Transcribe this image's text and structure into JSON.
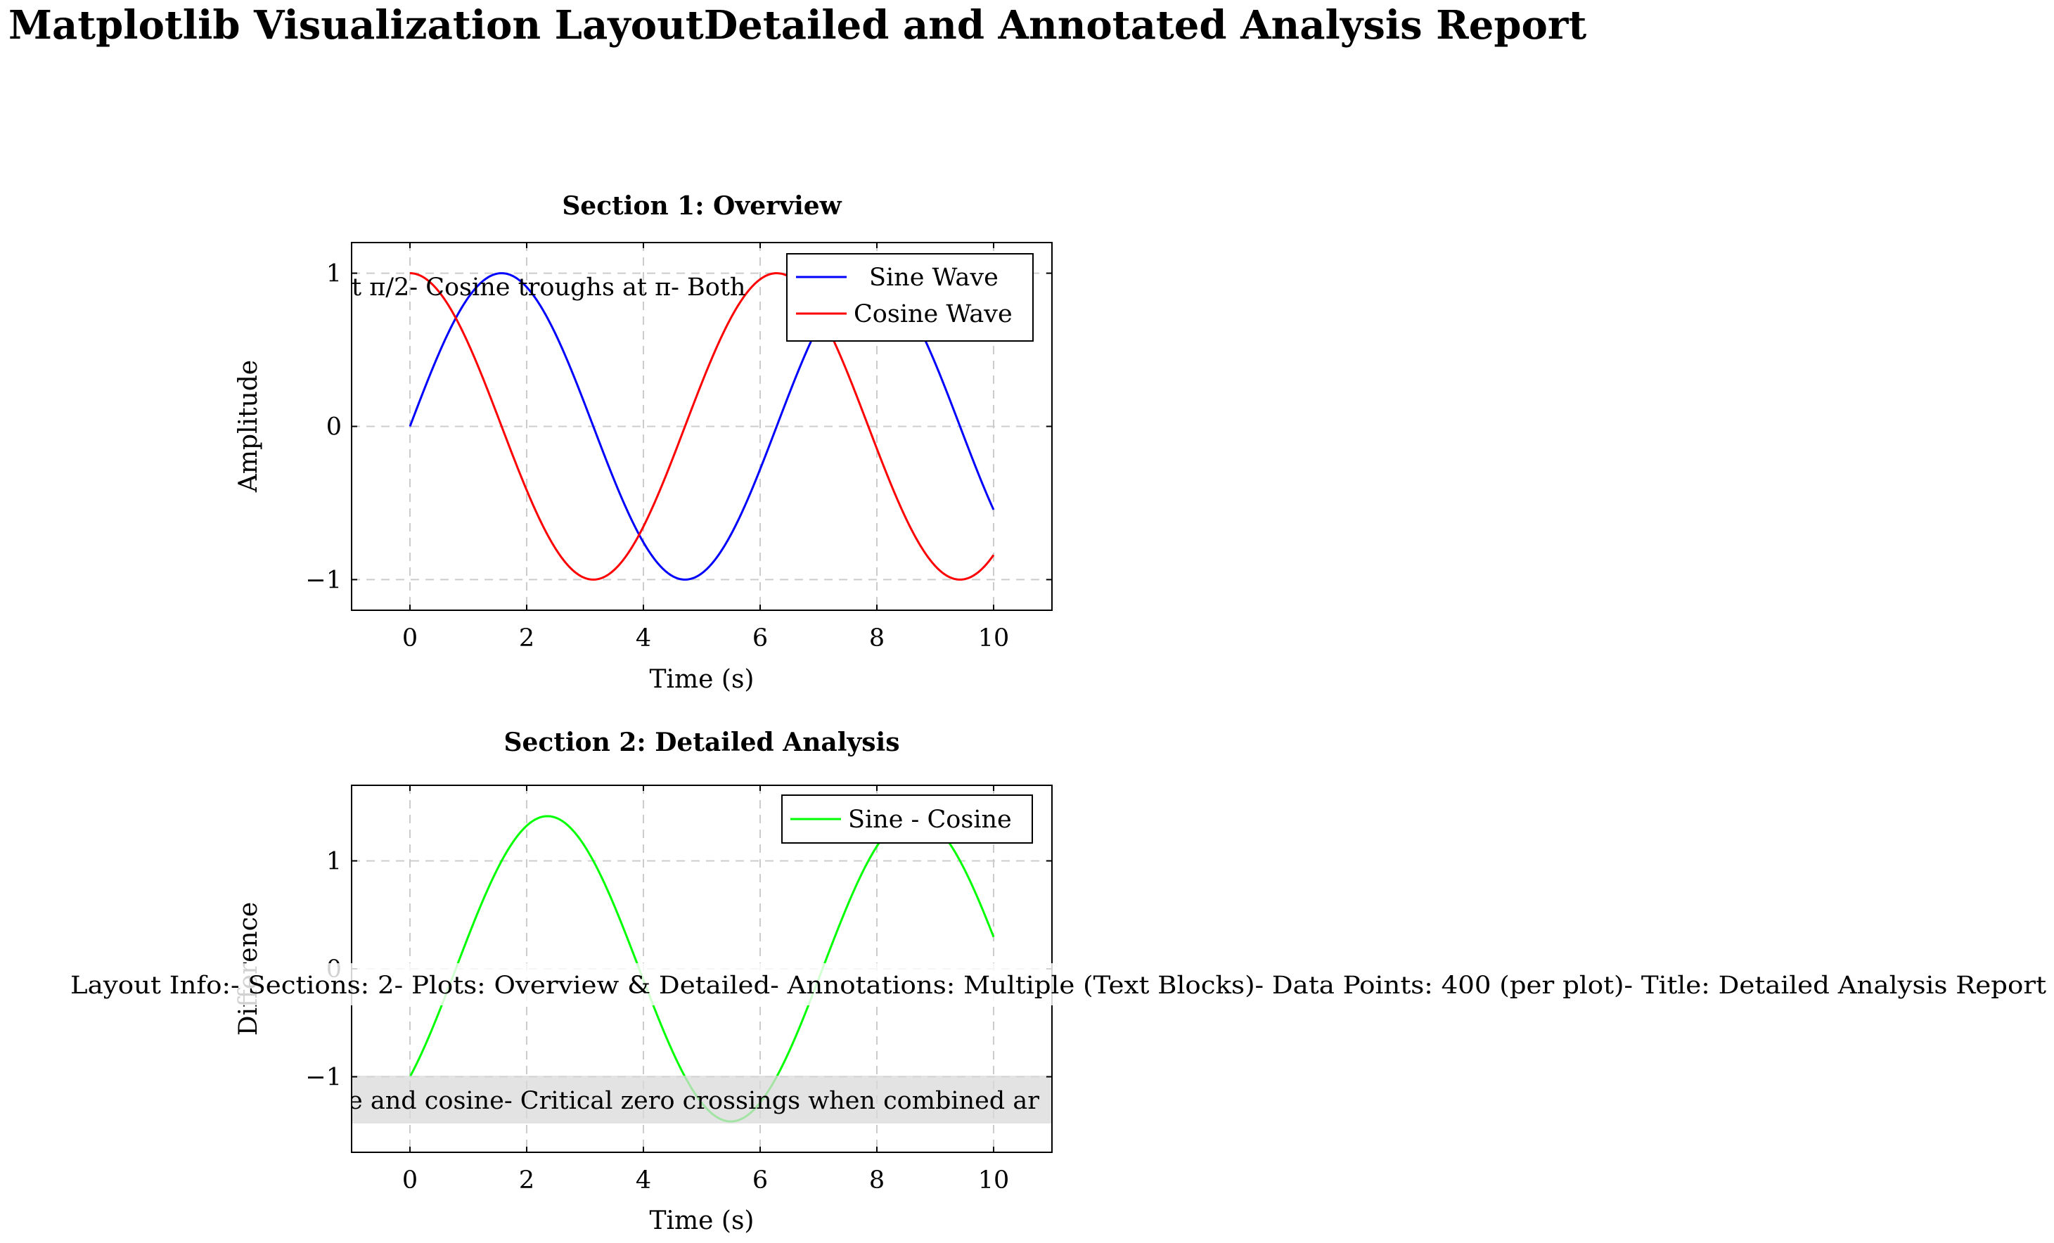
{
  "page": {
    "title": "Matplotlib Visualization LayoutDetailed and Annotated Analysis Report"
  },
  "chart_data": [
    {
      "type": "line",
      "title": "Section 1: Overview",
      "xlabel": "Time (s)",
      "ylabel": "Amplitude",
      "xlim": [
        -1,
        11
      ],
      "ylim": [
        -1.2,
        1.2
      ],
      "xticks": [
        0,
        2,
        4,
        6,
        8,
        10
      ],
      "xtick_labels": [
        "0",
        "2",
        "4",
        "6",
        "8",
        "10"
      ],
      "yticks": [
        -1,
        0,
        1
      ],
      "ytick_labels": [
        "−1",
        "0",
        "1"
      ],
      "grid": true,
      "legend_position": "top-right",
      "x_range": [
        0,
        10
      ],
      "num_points": 400,
      "series": [
        {
          "name": "Sine Wave",
          "function": "sin(x)",
          "color": "#0000ff"
        },
        {
          "name": "Cosine Wave",
          "function": "cos(x)",
          "color": "#ff0000"
        }
      ],
      "annotation": "t π/2- Cosine troughs at π- Both"
    },
    {
      "type": "line",
      "title": "Section 2: Detailed Analysis",
      "xlabel": "Time (s)",
      "ylabel": "Difference",
      "xlim": [
        -1,
        11
      ],
      "ylim": [
        -1.7,
        1.7
      ],
      "xticks": [
        0,
        2,
        4,
        6,
        8,
        10
      ],
      "xtick_labels": [
        "0",
        "2",
        "4",
        "6",
        "8",
        "10"
      ],
      "yticks": [
        -1,
        0,
        1
      ],
      "ytick_labels": [
        "−1",
        "0",
        "1"
      ],
      "grid": true,
      "legend_position": "top-right",
      "x_range": [
        0,
        10
      ],
      "num_points": 400,
      "series": [
        {
          "name": "Sine - Cosine",
          "function": "sin(x) - cos(x)",
          "color": "#00ff00"
        }
      ],
      "annotation": "e and cosine- Critical zero crossings when combined ar"
    }
  ],
  "layout_info": "Layout Info:- Sections: 2- Plots: Overview & Detailed- Annotations: Multiple (Text Blocks)- Data Points: 400 (per plot)- Title: Detailed Analysis Report"
}
